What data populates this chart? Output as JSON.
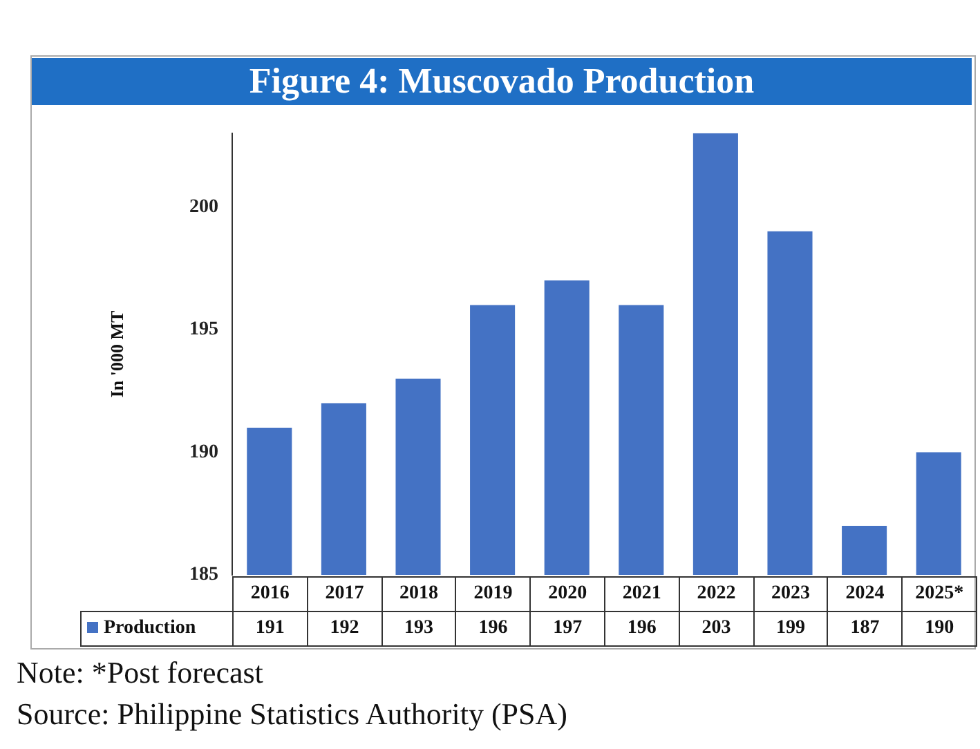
{
  "chart_data": {
    "type": "bar",
    "title": "Figure 4: Muscovado Production",
    "ylabel": "In '000 MT",
    "categories": [
      "2016",
      "2017",
      "2018",
      "2019",
      "2020",
      "2021",
      "2022",
      "2023",
      "2024",
      "2025*"
    ],
    "series": [
      {
        "name": "Production",
        "color": "#4472c4",
        "values": [
          191,
          192,
          193,
          196,
          197,
          196,
          203,
          199,
          187,
          190
        ]
      }
    ],
    "ylim": [
      185,
      203
    ],
    "yticks": [
      185,
      190,
      195,
      200
    ],
    "data_labels": true,
    "legend": "bottom",
    "annotations": [
      "Note: *Post forecast",
      "Source: Philippine Statistics Authority (PSA)"
    ]
  }
}
